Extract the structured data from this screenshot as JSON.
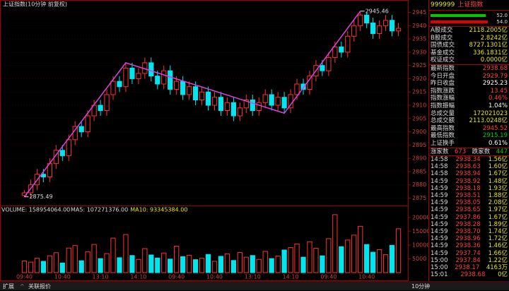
{
  "chart_data": [
    {
      "type": "candlestick",
      "title": "上证指数(10分钟 前复权)",
      "categories": [
        "09:40",
        null,
        null,
        null,
        null,
        null,
        "10:40",
        null,
        null,
        null,
        null,
        null,
        "13:10",
        null,
        null,
        null,
        null,
        null,
        "14:10",
        null,
        null,
        null,
        null,
        null,
        "09:40",
        null,
        null,
        null,
        null,
        null,
        "10:40",
        null,
        null,
        null,
        null,
        null,
        "13:10",
        null,
        null,
        null,
        null,
        null,
        "14:10",
        null,
        null,
        null,
        null,
        null,
        "09:40",
        null,
        null,
        null,
        null,
        null,
        "10:40",
        null,
        null,
        null,
        null,
        null
      ],
      "open": [
        2876,
        2877,
        2880,
        2884,
        2883,
        2888,
        2893,
        2891,
        2897,
        2902,
        2900,
        2906,
        2910,
        2908,
        2914,
        2919,
        2917,
        2924,
        2920,
        2922,
        2926,
        2921,
        2918,
        2923,
        2916,
        2919,
        2914,
        2917,
        2912,
        2915,
        2910,
        2913,
        2908,
        2911,
        2906,
        2909,
        2912,
        2908,
        2911,
        2914,
        2910,
        2913,
        2909,
        2914,
        2918,
        2916,
        2921,
        2925,
        2923,
        2928,
        2932,
        2930,
        2936,
        2940,
        2944,
        2941,
        2937,
        2940,
        2942,
        2938
      ],
      "high": [
        2878,
        2882,
        2886,
        2886,
        2890,
        2895,
        2895,
        2899,
        2904,
        2904,
        2908,
        2912,
        2912,
        2916,
        2921,
        2921,
        2926,
        2926,
        2924,
        2928,
        2928,
        2923,
        2925,
        2925,
        2921,
        2921,
        2919,
        2919,
        2917,
        2917,
        2915,
        2915,
        2913,
        2913,
        2911,
        2914,
        2914,
        2913,
        2916,
        2916,
        2915,
        2915,
        2916,
        2920,
        2920,
        2923,
        2927,
        2927,
        2930,
        2934,
        2934,
        2938,
        2942,
        2945.46,
        2945,
        2943,
        2942,
        2944,
        2944,
        2941
      ],
      "low": [
        2875.49,
        2875,
        2878,
        2881,
        2881,
        2886,
        2889,
        2889,
        2895,
        2898,
        2898,
        2904,
        2906,
        2906,
        2912,
        2915,
        2915,
        2918,
        2918,
        2920,
        2919,
        2916,
        2916,
        2914,
        2914,
        2912,
        2912,
        2910,
        2910,
        2908,
        2908,
        2906,
        2906,
        2904,
        2904,
        2907,
        2906,
        2906,
        2909,
        2908,
        2908,
        2907,
        2907,
        2912,
        2914,
        2914,
        2919,
        2921,
        2921,
        2926,
        2928,
        2928,
        2934,
        2938,
        2939,
        2935,
        2935,
        2938,
        2936,
        2936
      ],
      "close": [
        2877,
        2880,
        2884,
        2883,
        2888,
        2893,
        2891,
        2897,
        2902,
        2900,
        2906,
        2910,
        2908,
        2914,
        2919,
        2917,
        2924,
        2920,
        2922,
        2926,
        2921,
        2918,
        2923,
        2916,
        2919,
        2914,
        2917,
        2912,
        2915,
        2910,
        2913,
        2908,
        2911,
        2906,
        2909,
        2912,
        2908,
        2911,
        2914,
        2910,
        2913,
        2909,
        2914,
        2918,
        2916,
        2921,
        2925,
        2923,
        2928,
        2932,
        2930,
        2936,
        2940,
        2944,
        2941,
        2937,
        2940,
        2942,
        2938,
        2939
      ],
      "up_color": "#ff3232",
      "down_color": "#00e5ee",
      "ylim": [
        2873,
        2947
      ],
      "yticks": [
        2875,
        2880,
        2885,
        2890,
        2895,
        2900,
        2905,
        2910,
        2915,
        2920,
        2925,
        2930,
        2935,
        2940,
        2945
      ],
      "grid": true,
      "trendline": {
        "color": "#e040e0",
        "x_index": [
          0,
          16,
          41,
          53
        ],
        "values": [
          2875.49,
          2926,
          2907,
          2945.46
        ]
      },
      "annotations": [
        {
          "text": "2875.49",
          "x_index": 0,
          "value": 2875.49
        },
        {
          "text": "2945.46",
          "x_index": 53,
          "value": 2945.46
        }
      ]
    },
    {
      "type": "bar",
      "series_labels": [
        {
          "text": "VOLUME: 158954064.00",
          "color": "#dddddd"
        },
        {
          "text": "MA5: 107271376.00",
          "color": "#dddddd"
        },
        {
          "text": "MA10: 93345384.00",
          "color": "#e8e800"
        }
      ],
      "values": [
        4200,
        3800,
        5200,
        4100,
        6100,
        7200,
        3500,
        8900,
        9800,
        4300,
        7600,
        10200,
        5100,
        6900,
        12500,
        5400,
        13800,
        6200,
        4800,
        8700,
        6400,
        5300,
        7100,
        4900,
        9600,
        5800,
        6300,
        4700,
        5200,
        6600,
        4100,
        5900,
        6800,
        4400,
        7300,
        5600,
        6200,
        4800,
        7700,
        5100,
        6000,
        8200,
        9100,
        10400,
        5600,
        11200,
        8800,
        6100,
        12300,
        21000,
        9400,
        11800,
        13600,
        16800,
        10200,
        7400,
        8300,
        6500,
        9900,
        15895
      ],
      "ylim": [
        0,
        22000
      ],
      "yticks": [
        5000,
        10000,
        15000,
        20000
      ]
    }
  ],
  "panel": {
    "code": "999999",
    "name": "上证指数",
    "indicators": [
      {
        "value": 52,
        "label": "52.0",
        "color": "#00c800"
      },
      {
        "value": 54,
        "label": "54.0",
        "color": "#e00000"
      }
    ],
    "trades": [
      {
        "label": "A股成交",
        "value": "2118.2005亿"
      },
      {
        "label": "B股成交",
        "value": "2.8242亿"
      },
      {
        "label": "国债成交",
        "value": "8727.1301亿"
      },
      {
        "label": "基金成交",
        "value": "336.1831亿"
      },
      {
        "label": "权证成交",
        "value": "0.0000亿"
      }
    ],
    "stats": [
      {
        "label": "最新指数",
        "value": "2938.68",
        "color": "#ff4040"
      },
      {
        "label": "今日开盘",
        "value": "2929.79",
        "color": "#ff4040"
      },
      {
        "label": "昨日收盘",
        "value": "2925.23",
        "color": "#ffffff"
      },
      {
        "label": "指数涨跌",
        "value": "13.45",
        "color": "#ff4040"
      },
      {
        "label": "指数涨幅",
        "value": "0.46%",
        "color": "#ff4040"
      },
      {
        "label": "指数振幅",
        "value": "1.04%",
        "color": "#ffffff"
      },
      {
        "label": "总成交量",
        "value": "172021023",
        "color": "#e8e800"
      },
      {
        "label": "总成交额",
        "value": "2113.0248亿",
        "color": "#e8e800"
      },
      {
        "label": "最高指数",
        "value": "2945.52",
        "color": "#ff4040"
      },
      {
        "label": "最低指数",
        "value": "2915.19",
        "color": "#00d000"
      },
      {
        "label": "上证换手",
        "value": "0.61%",
        "color": "#ffffff"
      }
    ],
    "breadth": {
      "up_label": "涨家数",
      "up": "673",
      "down_label": "跌家数",
      "down": "447"
    },
    "ticks": [
      [
        "14:58",
        "2938.34",
        "1.56亿"
      ],
      [
        "14:58",
        "2938.63",
        "1.60亿"
      ],
      [
        "14:58",
        "2938.94",
        "1.67亿"
      ],
      [
        "14:59",
        "2938.92",
        "1.48亿"
      ],
      [
        "14:59",
        "2938.18",
        "1.93亿"
      ],
      [
        "14:59",
        "2938.51",
        "1.88亿"
      ],
      [
        "14:59",
        "2938.05",
        "2.08亿"
      ],
      [
        "14:59",
        "2938.65",
        "1.97亿"
      ],
      [
        "14:59",
        "2937.86",
        "1.67亿"
      ],
      [
        "14:59",
        "2938.28",
        "1.89亿"
      ],
      [
        "14:59",
        "2938.70",
        "1.74亿"
      ],
      [
        "14:59",
        "2938.96",
        "1.72亿"
      ],
      [
        "14:59",
        "2938.36",
        "1.46亿"
      ],
      [
        "14:59",
        "2937.74",
        "1.66亿"
      ],
      [
        "15:00",
        "2937.84",
        "1.22亿"
      ],
      [
        "15:00",
        "2938.17",
        "4163万"
      ],
      [
        "15:01",
        "2938.68",
        "0亿"
      ]
    ]
  },
  "footer": {
    "left": "扩展",
    "mid": "关联报价",
    "period": "10分钟"
  }
}
